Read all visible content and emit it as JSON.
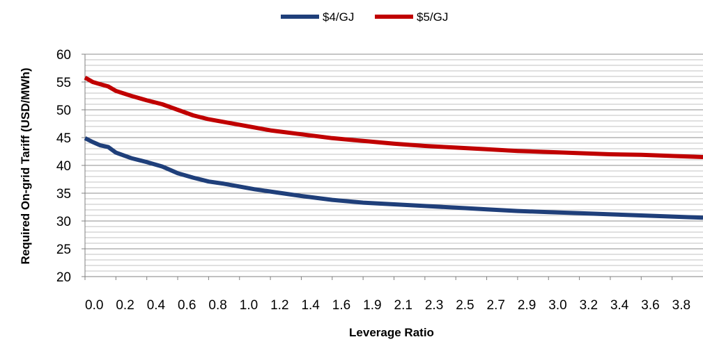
{
  "chart_data": {
    "type": "line",
    "title": "",
    "xlabel": "Leverage Ratio",
    "ylabel": "Required On-grid Tariff (USD/MWh)",
    "ylim": [
      20,
      60
    ],
    "yticks": [
      "20",
      "25",
      "30",
      "35",
      "40",
      "45",
      "50",
      "55",
      "60"
    ],
    "minor_grid_step": 1,
    "grid": true,
    "legend_position": "top",
    "x_tick_labels": [
      "0.0",
      "0.2",
      "0.4",
      "0.6",
      "0.8",
      "1.0",
      "1.2",
      "1.4",
      "1.6",
      "1.9",
      "2.1",
      "2.3",
      "2.5",
      "2.7",
      "2.9",
      "3.0",
      "3.2",
      "3.4",
      "3.6",
      "3.8"
    ],
    "x_index_range": [
      0,
      20
    ],
    "series": [
      {
        "name": "$4/GJ",
        "color": "#1f3f7a",
        "points": [
          [
            0,
            44.9
          ],
          [
            0.25,
            44.2
          ],
          [
            0.5,
            43.6
          ],
          [
            0.75,
            43.3
          ],
          [
            1,
            42.3
          ],
          [
            1.5,
            41.3
          ],
          [
            2,
            40.6
          ],
          [
            2.5,
            39.8
          ],
          [
            3,
            38.6
          ],
          [
            3.5,
            37.8
          ],
          [
            4,
            37.1
          ],
          [
            4.5,
            36.7
          ],
          [
            5,
            36.2
          ],
          [
            5.5,
            35.7
          ],
          [
            6,
            35.3
          ],
          [
            7,
            34.5
          ],
          [
            8,
            33.8
          ],
          [
            9,
            33.3
          ],
          [
            10,
            33.0
          ],
          [
            11,
            32.7
          ],
          [
            12,
            32.4
          ],
          [
            13,
            32.1
          ],
          [
            14,
            31.8
          ],
          [
            15,
            31.6
          ],
          [
            16,
            31.4
          ],
          [
            17,
            31.2
          ],
          [
            18,
            31.0
          ],
          [
            19,
            30.8
          ],
          [
            20,
            30.6
          ]
        ]
      },
      {
        "name": "$5/GJ",
        "color": "#c00000",
        "points": [
          [
            0,
            55.8
          ],
          [
            0.25,
            55.0
          ],
          [
            0.5,
            54.6
          ],
          [
            0.75,
            54.2
          ],
          [
            1,
            53.4
          ],
          [
            1.5,
            52.5
          ],
          [
            2,
            51.7
          ],
          [
            2.5,
            51.0
          ],
          [
            3,
            50.0
          ],
          [
            3.5,
            49.0
          ],
          [
            4,
            48.3
          ],
          [
            4.5,
            47.8
          ],
          [
            5,
            47.3
          ],
          [
            5.5,
            46.8
          ],
          [
            6,
            46.3
          ],
          [
            7,
            45.6
          ],
          [
            8,
            44.9
          ],
          [
            9,
            44.4
          ],
          [
            10,
            43.9
          ],
          [
            11,
            43.5
          ],
          [
            12,
            43.2
          ],
          [
            13,
            42.9
          ],
          [
            14,
            42.6
          ],
          [
            15,
            42.4
          ],
          [
            16,
            42.2
          ],
          [
            17,
            42.0
          ],
          [
            18,
            41.9
          ],
          [
            19,
            41.7
          ],
          [
            20,
            41.5
          ]
        ]
      }
    ]
  }
}
